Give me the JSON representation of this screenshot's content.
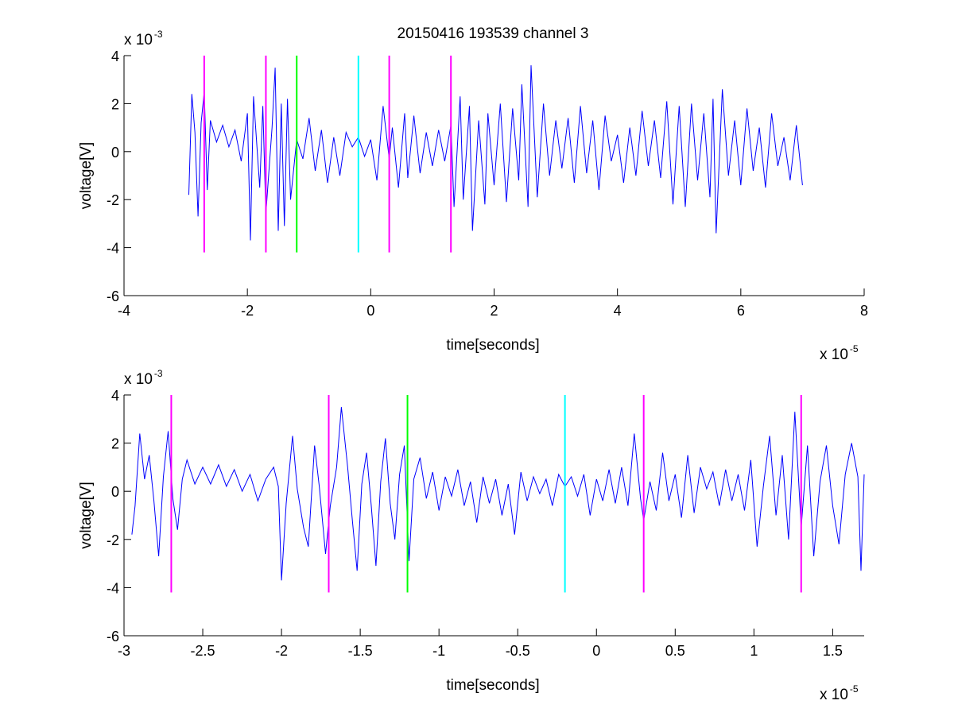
{
  "figure": {
    "title": "20150416 193539 channel 3"
  },
  "chart_data": [
    {
      "type": "line",
      "title": "20150416 193539 channel 3",
      "xlabel": "time[seconds]",
      "ylabel": "voltage[V]",
      "x_exponent_base": "x 10",
      "x_exponent_power": "-5",
      "y_exponent_base": "x 10",
      "y_exponent_power": "-3",
      "xlim": [
        -4,
        8
      ],
      "ylim": [
        -6,
        4
      ],
      "xticks": [
        -4,
        -2,
        0,
        2,
        4,
        6,
        8
      ],
      "xtick_labels": [
        "-4",
        "-2",
        "0",
        "2",
        "4",
        "6",
        "8"
      ],
      "yticks": [
        -6,
        -4,
        -2,
        0,
        2,
        4
      ],
      "ytick_labels": [
        "-6",
        "-4",
        "-2",
        "0",
        "2",
        "4"
      ],
      "grid": false,
      "series": [
        {
          "color": "#0000ff",
          "x_range": [
            -2.95,
            7.0
          ],
          "points": [
            [
              -2.95,
              -1.8
            ],
            [
              -2.9,
              2.4
            ],
            [
              -2.85,
              0.8
            ],
            [
              -2.8,
              -2.7
            ],
            [
              -2.75,
              1.2
            ],
            [
              -2.7,
              2.5
            ],
            [
              -2.65,
              -1.6
            ],
            [
              -2.6,
              1.3
            ],
            [
              -2.5,
              0.4
            ],
            [
              -2.4,
              1.1
            ],
            [
              -2.3,
              0.2
            ],
            [
              -2.2,
              0.9
            ],
            [
              -2.1,
              -0.4
            ],
            [
              -2.0,
              1.6
            ],
            [
              -1.95,
              -3.7
            ],
            [
              -1.9,
              2.3
            ],
            [
              -1.8,
              -1.5
            ],
            [
              -1.75,
              1.9
            ],
            [
              -1.7,
              -2.6
            ],
            [
              -1.6,
              1.0
            ],
            [
              -1.55,
              3.5
            ],
            [
              -1.5,
              -3.3
            ],
            [
              -1.45,
              2.0
            ],
            [
              -1.4,
              -3.1
            ],
            [
              -1.35,
              2.2
            ],
            [
              -1.3,
              -2.0
            ],
            [
              -1.2,
              0.5
            ],
            [
              -1.1,
              -0.3
            ],
            [
              -1.0,
              1.4
            ],
            [
              -0.9,
              -0.8
            ],
            [
              -0.8,
              0.9
            ],
            [
              -0.7,
              -1.3
            ],
            [
              -0.6,
              0.6
            ],
            [
              -0.5,
              -1.0
            ],
            [
              -0.4,
              0.8
            ],
            [
              -0.3,
              0.2
            ],
            [
              -0.2,
              0.6
            ],
            [
              -0.1,
              -0.2
            ],
            [
              0.0,
              0.5
            ],
            [
              0.1,
              -1.2
            ],
            [
              0.2,
              1.9
            ],
            [
              0.3,
              -0.3
            ],
            [
              0.35,
              1.0
            ],
            [
              0.45,
              -1.5
            ],
            [
              0.55,
              1.6
            ],
            [
              0.6,
              -1.1
            ],
            [
              0.7,
              1.5
            ],
            [
              0.8,
              -0.9
            ],
            [
              0.9,
              0.8
            ],
            [
              1.0,
              -0.6
            ],
            [
              1.1,
              0.9
            ],
            [
              1.2,
              -0.4
            ],
            [
              1.3,
              1.1
            ],
            [
              1.35,
              -2.3
            ],
            [
              1.45,
              2.3
            ],
            [
              1.5,
              -2.0
            ],
            [
              1.6,
              1.9
            ],
            [
              1.65,
              -3.3
            ],
            [
              1.75,
              1.3
            ],
            [
              1.85,
              -2.2
            ],
            [
              1.9,
              1.6
            ],
            [
              2.0,
              -1.4
            ],
            [
              2.1,
              2.0
            ],
            [
              2.2,
              -2.1
            ],
            [
              2.3,
              1.8
            ],
            [
              2.4,
              -1.2
            ],
            [
              2.45,
              2.8
            ],
            [
              2.55,
              -2.3
            ],
            [
              2.6,
              3.6
            ],
            [
              2.7,
              -1.9
            ],
            [
              2.8,
              2.0
            ],
            [
              2.9,
              -1.0
            ],
            [
              3.0,
              1.3
            ],
            [
              3.1,
              -0.7
            ],
            [
              3.2,
              1.4
            ],
            [
              3.3,
              -1.3
            ],
            [
              3.4,
              1.9
            ],
            [
              3.5,
              -0.9
            ],
            [
              3.6,
              1.3
            ],
            [
              3.7,
              -1.6
            ],
            [
              3.8,
              1.5
            ],
            [
              3.9,
              -0.4
            ],
            [
              4.0,
              0.7
            ],
            [
              4.1,
              -1.3
            ],
            [
              4.2,
              1.0
            ],
            [
              4.3,
              -1.0
            ],
            [
              4.4,
              1.7
            ],
            [
              4.5,
              -0.6
            ],
            [
              4.6,
              1.3
            ],
            [
              4.7,
              -1.1
            ],
            [
              4.8,
              2.1
            ],
            [
              4.9,
              -2.2
            ],
            [
              5.0,
              1.9
            ],
            [
              5.1,
              -2.3
            ],
            [
              5.2,
              2.0
            ],
            [
              5.3,
              -1.2
            ],
            [
              5.4,
              1.6
            ],
            [
              5.5,
              -1.9
            ],
            [
              5.55,
              2.2
            ],
            [
              5.6,
              -3.4
            ],
            [
              5.7,
              2.6
            ],
            [
              5.8,
              -1.0
            ],
            [
              5.9,
              1.3
            ],
            [
              6.0,
              -1.4
            ],
            [
              6.1,
              1.8
            ],
            [
              6.2,
              -0.8
            ],
            [
              6.3,
              1.0
            ],
            [
              6.4,
              -1.5
            ],
            [
              6.5,
              1.6
            ],
            [
              6.6,
              -0.6
            ],
            [
              6.7,
              0.6
            ],
            [
              6.8,
              -1.2
            ],
            [
              6.9,
              1.1
            ],
            [
              7.0,
              -1.4
            ]
          ]
        }
      ],
      "markers": [
        {
          "x": -2.7,
          "y_from": -4.2,
          "y_to": 4.0,
          "color": "#ff00ff"
        },
        {
          "x": -1.7,
          "y_from": -4.2,
          "y_to": 4.0,
          "color": "#ff00ff"
        },
        {
          "x": -1.2,
          "y_from": -4.2,
          "y_to": 4.0,
          "color": "#00ff00"
        },
        {
          "x": -0.2,
          "y_from": -4.2,
          "y_to": 4.0,
          "color": "#00ffff"
        },
        {
          "x": 0.3,
          "y_from": -4.2,
          "y_to": 4.0,
          "color": "#ff00ff"
        },
        {
          "x": 1.3,
          "y_from": -4.2,
          "y_to": 4.0,
          "color": "#ff00ff"
        }
      ]
    },
    {
      "type": "line",
      "title": "",
      "xlabel": "time[seconds]",
      "ylabel": "voltage[V]",
      "x_exponent_base": "x 10",
      "x_exponent_power": "-5",
      "y_exponent_base": "x 10",
      "y_exponent_power": "-3",
      "xlim": [
        -3.0,
        1.7
      ],
      "ylim": [
        -6,
        4
      ],
      "xticks": [
        -3,
        -2.5,
        -2,
        -1.5,
        -1,
        -0.5,
        0,
        0.5,
        1,
        1.5
      ],
      "xtick_labels": [
        "-3",
        "-2.5",
        "-2",
        "-1.5",
        "-1",
        "-0.5",
        "0",
        "0.5",
        "1",
        "1.5"
      ],
      "yticks": [
        -6,
        -4,
        -2,
        0,
        2,
        4
      ],
      "ytick_labels": [
        "-6",
        "-4",
        "-2",
        "0",
        "2",
        "4"
      ],
      "grid": false,
      "series": [
        {
          "color": "#0000ff",
          "x_range": [
            -2.95,
            1.7
          ],
          "points": [
            [
              -2.95,
              -1.8
            ],
            [
              -2.93,
              -0.6
            ],
            [
              -2.9,
              2.4
            ],
            [
              -2.87,
              0.5
            ],
            [
              -2.84,
              1.5
            ],
            [
              -2.81,
              -0.4
            ],
            [
              -2.78,
              -2.7
            ],
            [
              -2.75,
              0.6
            ],
            [
              -2.72,
              2.5
            ],
            [
              -2.69,
              -0.3
            ],
            [
              -2.66,
              -1.6
            ],
            [
              -2.63,
              0.5
            ],
            [
              -2.6,
              1.3
            ],
            [
              -2.55,
              0.3
            ],
            [
              -2.5,
              1.0
            ],
            [
              -2.45,
              0.3
            ],
            [
              -2.4,
              1.1
            ],
            [
              -2.35,
              0.2
            ],
            [
              -2.3,
              0.9
            ],
            [
              -2.25,
              0.0
            ],
            [
              -2.2,
              0.7
            ],
            [
              -2.15,
              -0.4
            ],
            [
              -2.1,
              0.5
            ],
            [
              -2.05,
              1.0
            ],
            [
              -2.02,
              0.2
            ],
            [
              -2.0,
              -3.7
            ],
            [
              -1.97,
              -0.5
            ],
            [
              -1.93,
              2.3
            ],
            [
              -1.9,
              0.1
            ],
            [
              -1.86,
              -1.5
            ],
            [
              -1.83,
              -2.3
            ],
            [
              -1.79,
              1.9
            ],
            [
              -1.76,
              0.2
            ],
            [
              -1.72,
              -2.6
            ],
            [
              -1.69,
              -0.6
            ],
            [
              -1.65,
              1.0
            ],
            [
              -1.62,
              3.5
            ],
            [
              -1.58,
              1.0
            ],
            [
              -1.55,
              -1.2
            ],
            [
              -1.52,
              -3.3
            ],
            [
              -1.49,
              0.3
            ],
            [
              -1.46,
              1.6
            ],
            [
              -1.43,
              -0.6
            ],
            [
              -1.4,
              -3.1
            ],
            [
              -1.37,
              0.4
            ],
            [
              -1.34,
              2.2
            ],
            [
              -1.31,
              -0.5
            ],
            [
              -1.28,
              -2.0
            ],
            [
              -1.25,
              0.7
            ],
            [
              -1.22,
              1.9
            ],
            [
              -1.19,
              -2.9
            ],
            [
              -1.16,
              0.5
            ],
            [
              -1.12,
              1.4
            ],
            [
              -1.08,
              -0.3
            ],
            [
              -1.04,
              0.8
            ],
            [
              -1.0,
              -0.8
            ],
            [
              -0.96,
              0.6
            ],
            [
              -0.92,
              -0.2
            ],
            [
              -0.88,
              0.9
            ],
            [
              -0.84,
              -0.6
            ],
            [
              -0.8,
              0.4
            ],
            [
              -0.76,
              -1.3
            ],
            [
              -0.72,
              0.6
            ],
            [
              -0.68,
              -0.5
            ],
            [
              -0.64,
              0.5
            ],
            [
              -0.6,
              -1.0
            ],
            [
              -0.56,
              0.3
            ],
            [
              -0.52,
              -1.8
            ],
            [
              -0.48,
              0.8
            ],
            [
              -0.44,
              -0.4
            ],
            [
              -0.4,
              0.6
            ],
            [
              -0.36,
              -0.1
            ],
            [
              -0.32,
              0.5
            ],
            [
              -0.28,
              -0.6
            ],
            [
              -0.24,
              0.7
            ],
            [
              -0.2,
              0.2
            ],
            [
              -0.16,
              0.6
            ],
            [
              -0.12,
              -0.2
            ],
            [
              -0.08,
              0.7
            ],
            [
              -0.04,
              -1.0
            ],
            [
              0.0,
              0.5
            ],
            [
              0.04,
              -0.4
            ],
            [
              0.08,
              0.9
            ],
            [
              0.12,
              -0.5
            ],
            [
              0.16,
              1.0
            ],
            [
              0.2,
              -0.6
            ],
            [
              0.24,
              2.4
            ],
            [
              0.28,
              -0.3
            ],
            [
              0.3,
              -1.2
            ],
            [
              0.34,
              0.4
            ],
            [
              0.38,
              -0.8
            ],
            [
              0.42,
              1.6
            ],
            [
              0.46,
              -0.4
            ],
            [
              0.5,
              0.7
            ],
            [
              0.54,
              -1.1
            ],
            [
              0.58,
              1.5
            ],
            [
              0.62,
              -0.9
            ],
            [
              0.66,
              1.0
            ],
            [
              0.7,
              0.1
            ],
            [
              0.74,
              0.8
            ],
            [
              0.78,
              -0.6
            ],
            [
              0.82,
              0.9
            ],
            [
              0.86,
              -0.4
            ],
            [
              0.9,
              0.7
            ],
            [
              0.94,
              -0.8
            ],
            [
              0.98,
              1.3
            ],
            [
              1.02,
              -2.3
            ],
            [
              1.06,
              0.2
            ],
            [
              1.1,
              2.3
            ],
            [
              1.14,
              -1.0
            ],
            [
              1.18,
              1.5
            ],
            [
              1.22,
              -2.0
            ],
            [
              1.26,
              3.3
            ],
            [
              1.3,
              -1.5
            ],
            [
              1.34,
              1.9
            ],
            [
              1.38,
              -2.7
            ],
            [
              1.42,
              0.4
            ],
            [
              1.46,
              1.9
            ],
            [
              1.5,
              -0.6
            ],
            [
              1.54,
              -2.2
            ],
            [
              1.58,
              0.7
            ],
            [
              1.62,
              2.0
            ],
            [
              1.66,
              0.6
            ],
            [
              1.68,
              -3.3
            ],
            [
              1.7,
              0.7
            ]
          ]
        }
      ],
      "markers": [
        {
          "x": -2.7,
          "y_from": -4.2,
          "y_to": 4.0,
          "color": "#ff00ff"
        },
        {
          "x": -1.7,
          "y_from": -4.2,
          "y_to": 4.0,
          "color": "#ff00ff"
        },
        {
          "x": -1.2,
          "y_from": -4.2,
          "y_to": 4.0,
          "color": "#00ff00"
        },
        {
          "x": -0.2,
          "y_from": -4.2,
          "y_to": 4.0,
          "color": "#00ffff"
        },
        {
          "x": 0.3,
          "y_from": -4.2,
          "y_to": 4.0,
          "color": "#ff00ff"
        },
        {
          "x": 1.3,
          "y_from": -4.2,
          "y_to": 4.0,
          "color": "#ff00ff"
        }
      ]
    }
  ]
}
